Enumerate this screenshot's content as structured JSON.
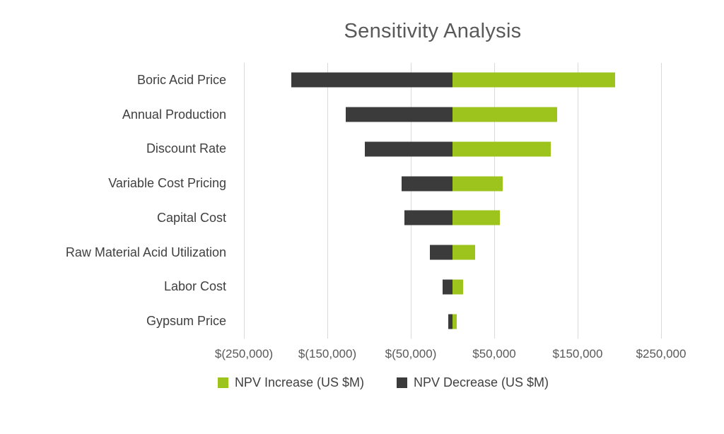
{
  "page": {
    "background": "#FFFFFF"
  },
  "chart_data": {
    "type": "bar",
    "subtype": "tornado",
    "orientation": "horizontal",
    "title": "Sensitivity Analysis",
    "xlabel": "",
    "ylabel": "",
    "grid": "vertical",
    "legend_position": "bottom",
    "xlim": [
      -250000,
      250000
    ],
    "categories": [
      "Boric Acid Price",
      "Annual Production",
      "Discount Rate",
      "Variable Cost Pricing",
      "Capital Cost",
      "Raw Material Acid Utilization",
      "Labor Cost",
      "Gypsum Price"
    ],
    "series": [
      {
        "name": "NPV Increase (US $M)",
        "color": "#9DC41D",
        "values": [
          195000,
          125000,
          118000,
          60000,
          57000,
          27000,
          13000,
          5000
        ]
      },
      {
        "name": "NPV Decrease (US $M)",
        "color": "#3B3B3B",
        "values": [
          -193000,
          -128000,
          -105000,
          -61000,
          -58000,
          -27000,
          -12000,
          -5000
        ]
      }
    ],
    "x_ticks": [
      {
        "value": -250000,
        "label": "$(250,000)"
      },
      {
        "value": -150000,
        "label": "$(150,000)"
      },
      {
        "value": -50000,
        "label": "$(50,000)"
      },
      {
        "value": 50000,
        "label": "$50,000"
      },
      {
        "value": 150000,
        "label": "$150,000"
      },
      {
        "value": 250000,
        "label": "$250,000"
      }
    ]
  },
  "colors": {
    "grid": "#D9D9D9",
    "title_text": "#595959",
    "category_text": "#404040",
    "axis_text": "#595959"
  }
}
